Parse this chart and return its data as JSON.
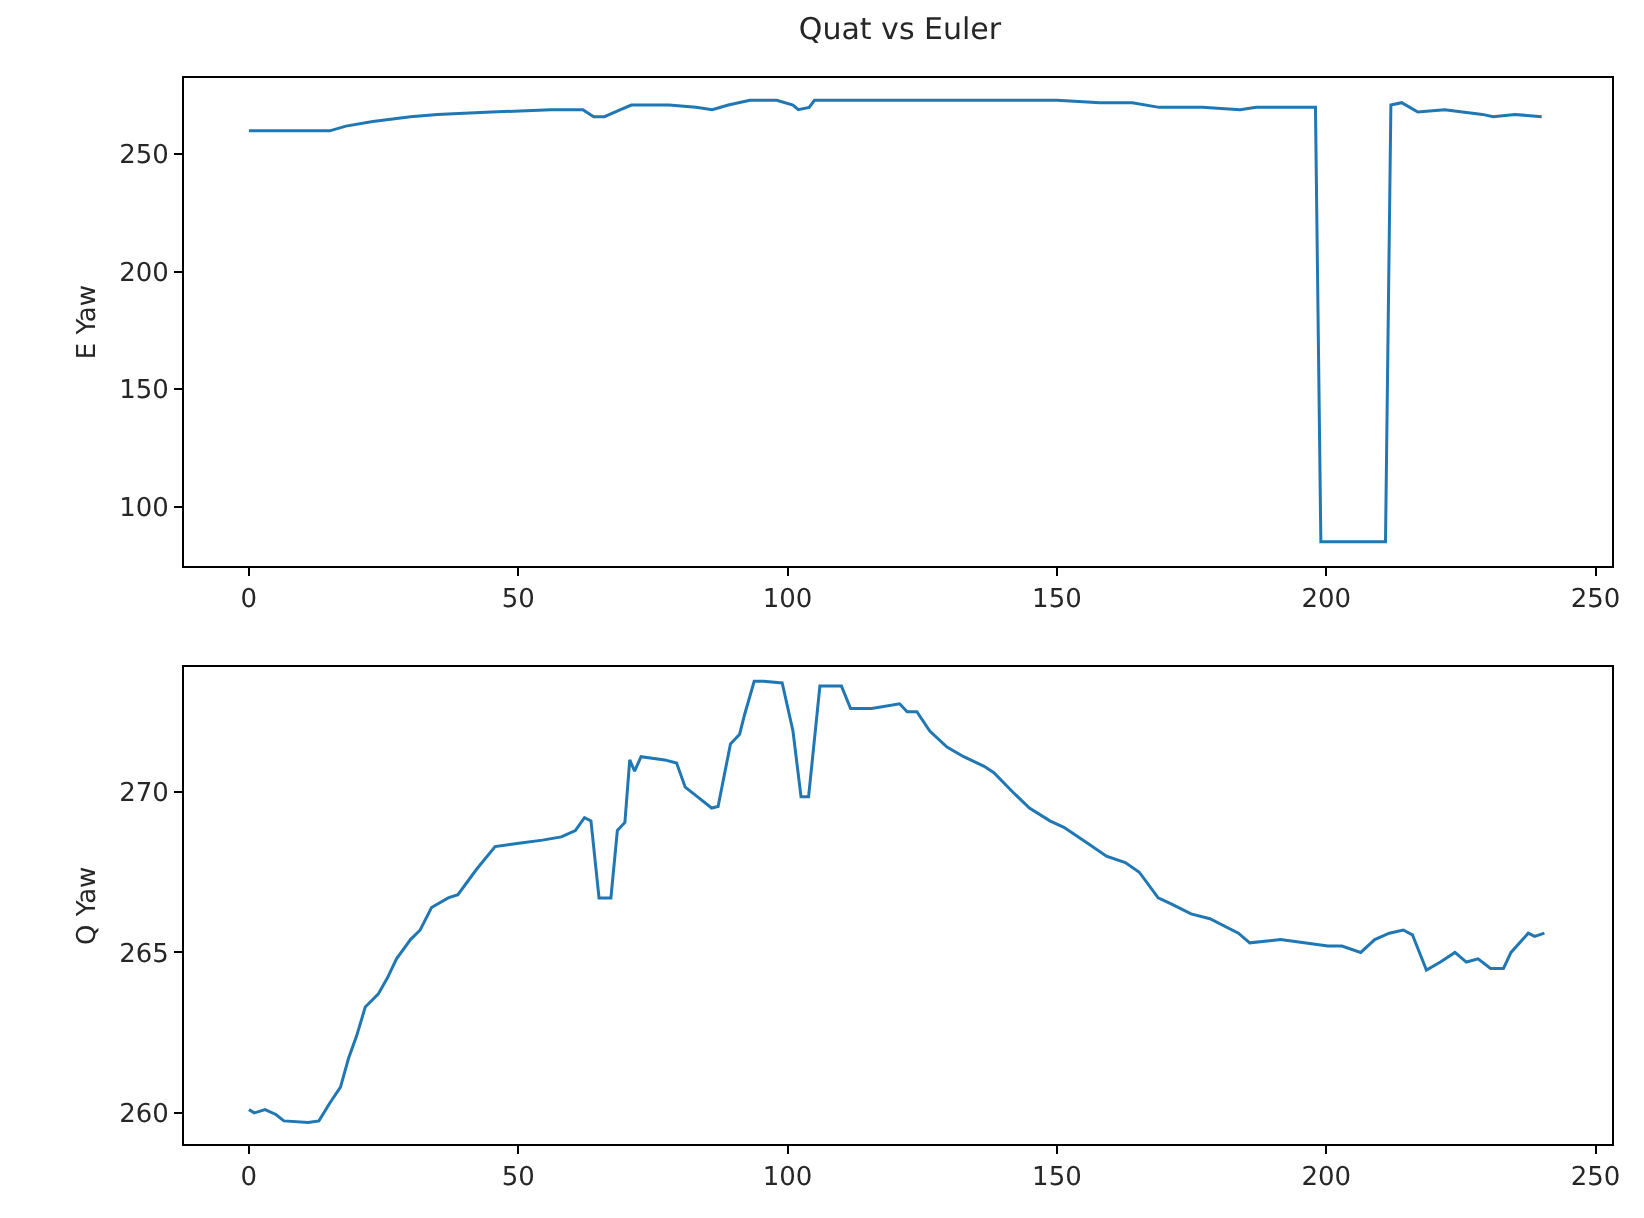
{
  "chart_data": [
    {
      "type": "line",
      "title": "Quat vs Euler",
      "ylabel": "E Yaw",
      "xlim": [
        -12.05,
        253.05
      ],
      "ylim": [
        74.6,
        282.5
      ],
      "xticks": [
        0,
        50,
        100,
        150,
        200,
        250
      ],
      "yticks": [
        100,
        150,
        200,
        250
      ],
      "marker": "none",
      "line_style": "solid",
      "series": [
        {
          "color": "#1f77b4",
          "x": [
            0,
            4,
            12,
            15,
            18,
            23,
            30,
            35,
            45,
            56,
            62,
            64,
            66,
            69,
            71,
            78,
            83,
            86,
            89,
            93,
            98,
            101,
            102,
            104,
            105,
            111,
            122,
            137,
            150,
            158,
            164,
            169,
            177,
            184,
            187,
            198,
            199,
            211,
            212,
            214,
            217,
            222,
            229,
            231,
            235,
            240
          ],
          "values": [
            260,
            260,
            260,
            260,
            262,
            264,
            266,
            267,
            268,
            269,
            269,
            266,
            266,
            269,
            271,
            271,
            270,
            269,
            271,
            273,
            273,
            271,
            269,
            270,
            273,
            273,
            273,
            273,
            273,
            272,
            272,
            270,
            270,
            269,
            270,
            270,
            85,
            85,
            271,
            272,
            268,
            269,
            267,
            266,
            267,
            266
          ]
        }
      ]
    },
    {
      "type": "line",
      "ylabel": "Q Yaw",
      "xlim": [
        -12.05,
        253.05
      ],
      "ylim": [
        259.03,
        273.88
      ],
      "xticks": [
        0,
        50,
        100,
        150,
        200,
        250
      ],
      "yticks": [
        260,
        265,
        270
      ],
      "marker": "none",
      "line_style": "solid",
      "series": [
        {
          "color": "#1f77b4",
          "x": [
            0,
            1,
            3,
            5,
            6.5,
            11,
            13,
            15,
            17,
            18.5,
            20,
            21.6,
            24,
            25.7,
            27.4,
            30,
            31.8,
            33.9,
            37,
            38.8,
            42.3,
            45.7,
            50.1,
            54.5,
            58,
            60.6,
            62.3,
            63.5,
            65,
            67.2,
            68.4,
            69.8,
            70.7,
            71.6,
            72.8,
            77.2,
            79.4,
            81,
            83.3,
            85.9,
            87.1,
            89.4,
            91.1,
            92,
            93.8,
            95.5,
            99,
            101,
            102.5,
            103.9,
            106,
            110,
            111.7,
            115.6,
            120.8,
            122.2,
            124,
            126.4,
            129.6,
            132.7,
            136.5,
            138.3,
            141.8,
            144.9,
            148.7,
            151.3,
            155.7,
            159.2,
            162.7,
            165.3,
            168.8,
            171.4,
            174.9,
            178.4,
            183.7,
            185.8,
            191.5,
            195.9,
            200.3,
            202.9,
            206.4,
            209,
            211.7,
            214.3,
            216,
            218.6,
            221.2,
            223.9,
            226,
            228.2,
            230.5,
            232.9,
            234.3,
            237.5,
            238.7,
            240.5
          ],
          "values": [
            260.1,
            260.0,
            260.1,
            259.95,
            259.75,
            259.7,
            259.75,
            260.3,
            260.8,
            261.7,
            262.4,
            263.3,
            263.7,
            264.2,
            264.8,
            265.4,
            265.7,
            266.4,
            266.7,
            266.8,
            267.6,
            268.3,
            268.4,
            268.5,
            268.6,
            268.8,
            269.2,
            269.1,
            266.7,
            266.7,
            268.8,
            269.05,
            271.0,
            270.65,
            271.1,
            271.0,
            270.9,
            270.15,
            269.85,
            269.5,
            269.55,
            271.5,
            271.8,
            272.4,
            273.45,
            273.45,
            273.4,
            271.9,
            269.85,
            269.85,
            273.3,
            273.3,
            272.6,
            272.6,
            272.75,
            272.5,
            272.5,
            271.9,
            271.4,
            271.1,
            270.8,
            270.6,
            270.0,
            269.5,
            269.1,
            268.9,
            268.4,
            268.0,
            267.8,
            267.5,
            266.7,
            266.5,
            266.2,
            266.05,
            265.6,
            265.3,
            265.4,
            265.3,
            265.2,
            265.2,
            265.0,
            265.4,
            265.6,
            265.7,
            265.55,
            264.45,
            264.7,
            265.0,
            264.7,
            264.8,
            264.5,
            264.5,
            265.0,
            265.6,
            265.5,
            265.6
          ]
        }
      ]
    }
  ]
}
